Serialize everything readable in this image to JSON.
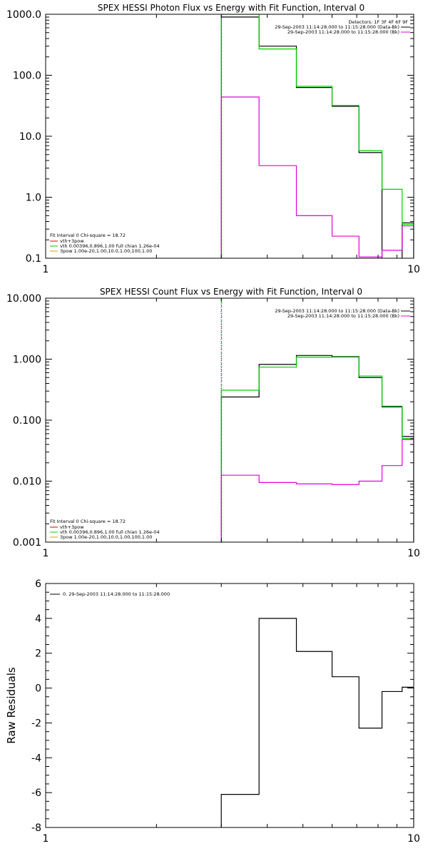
{
  "chart_data": [
    {
      "type": "line",
      "title": "SPEX HESSI Photon Flux vs Energy with Fit Function, Interval 0",
      "xlabel": "",
      "ylabel": "",
      "xscale": "log",
      "yscale": "log",
      "xlim": [
        1,
        10
      ],
      "ylim": [
        0.1,
        1000
      ],
      "x_ticks": [
        "1",
        "10"
      ],
      "y_ticks": [
        "0.1",
        "1.0",
        "10.0",
        "100.0",
        "1000.0"
      ],
      "bin_edges": [
        3.0,
        3.8,
        4.8,
        6.0,
        7.1,
        8.2,
        9.3,
        10.0
      ],
      "marker_line_x": 3.0,
      "legend_right": {
        "placement": "top-right",
        "header": "Detectors: 1F 3F 4F 6F 9F",
        "entries": [
          "29-Sep-2003 11:14:28.000 to 11:15:28.000 (Data-Bk)",
          "29-Sep-2003 11:14:28.000 to 11:15:28.000 (Bk)"
        ]
      },
      "legend_left": {
        "placement": "bottom-left",
        "header": "Fit Interval 0   Chi-square = 18.72",
        "entries": [
          "vth+3pow",
          "vth 0.00396,0.896,1.00  full chian 1.26e-04",
          "3pow 1.00e-20,1.00,10.0,1.00,100,1.00"
        ]
      },
      "series": [
        {
          "name": "29-Sep-2003 11:14:28.000 to 11:15:28.000 (Data-Bk)",
          "color": "#000000",
          "values": [
            900,
            300,
            63,
            31,
            5.4,
            0.08,
            0.38
          ]
        },
        {
          "name": "vth 0.00396,0.896,1.00  full chian 1.26e-04",
          "color": "#00d000",
          "values": [
            1000,
            270,
            66,
            32,
            5.8,
            1.35,
            0.36
          ]
        },
        {
          "name": "29-Sep-2003 11:14:28.000 to 11:15:28.000 (Bk)",
          "color": "#e000e0",
          "values": [
            44,
            3.3,
            0.5,
            0.23,
            0.105,
            0.135,
            0.34
          ]
        }
      ]
    },
    {
      "type": "line",
      "title": "SPEX HESSI Count Flux vs Energy with Fit Function, Interval 0",
      "xlabel": "",
      "ylabel": "",
      "xscale": "log",
      "yscale": "log",
      "xlim": [
        1,
        10
      ],
      "ylim": [
        0.001,
        10
      ],
      "x_ticks": [
        "1",
        "10"
      ],
      "y_ticks": [
        "0.001",
        "0.010",
        "0.100",
        "1.000",
        "10.000"
      ],
      "bin_edges": [
        3.0,
        3.8,
        4.8,
        6.0,
        7.1,
        8.2,
        9.3,
        10.0
      ],
      "marker_line_x": 3.0,
      "legend_right": {
        "placement": "top-right",
        "entries": [
          "29-Sep-2003 11:14:28.000 to 11:15:28.000 (Data-Bk)",
          "29-Sep-2003 11:14:28.000 to 11:15:28.000 (Bk)"
        ]
      },
      "legend_left": {
        "placement": "bottom-left",
        "header": "Fit Interval 0   Chi-square = 18.72",
        "entries": [
          "vth+3pow",
          "vth 0.00396,0.896,1.00  full chian 1.26e-04",
          "3pow 1.00e-20,1.00,10.0,1.00,100,1.00"
        ]
      },
      "series": [
        {
          "name": "29-Sep-2003 11:14:28.000 to 11:15:28.000 (Data-Bk)",
          "color": "#000000",
          "values": [
            0.24,
            0.82,
            1.15,
            1.1,
            0.5,
            0.165,
            0.054
          ]
        },
        {
          "name": "vth 0.00396,0.896,1.00  full chian 1.26e-04",
          "color": "#00d000",
          "values": [
            0.31,
            0.74,
            1.08,
            1.08,
            0.53,
            0.17,
            0.05
          ]
        },
        {
          "name": "29-Sep-2003 11:14:28.000 to 11:15:28.000 (Bk)",
          "color": "#e000e0",
          "values": [
            0.0125,
            0.0095,
            0.009,
            0.0088,
            0.01,
            0.018,
            0.048
          ]
        }
      ]
    },
    {
      "type": "line",
      "title": "",
      "xlabel": "",
      "ylabel": "Raw Residuals",
      "xscale": "log",
      "yscale": "linear",
      "xlim": [
        1,
        10
      ],
      "ylim": [
        -8,
        6
      ],
      "x_ticks": [
        "1",
        "10"
      ],
      "y_ticks": [
        "-8",
        "-6",
        "-4",
        "-2",
        "0",
        "2",
        "4",
        "6"
      ],
      "bin_edges": [
        3.0,
        3.8,
        4.8,
        6.0,
        7.1,
        8.2,
        9.3,
        10.0
      ],
      "legend": {
        "placement": "top-left",
        "entries": [
          "0. 29-Sep-2003 11:14:28.000 to 11:15:28.000"
        ]
      },
      "series": [
        {
          "name": "0. 29-Sep-2003 11:14:28.000 to 11:15:28.000",
          "color": "#000000",
          "values": [
            -6.1,
            4.0,
            2.1,
            0.65,
            -2.3,
            -0.2,
            0.05
          ]
        }
      ]
    }
  ]
}
